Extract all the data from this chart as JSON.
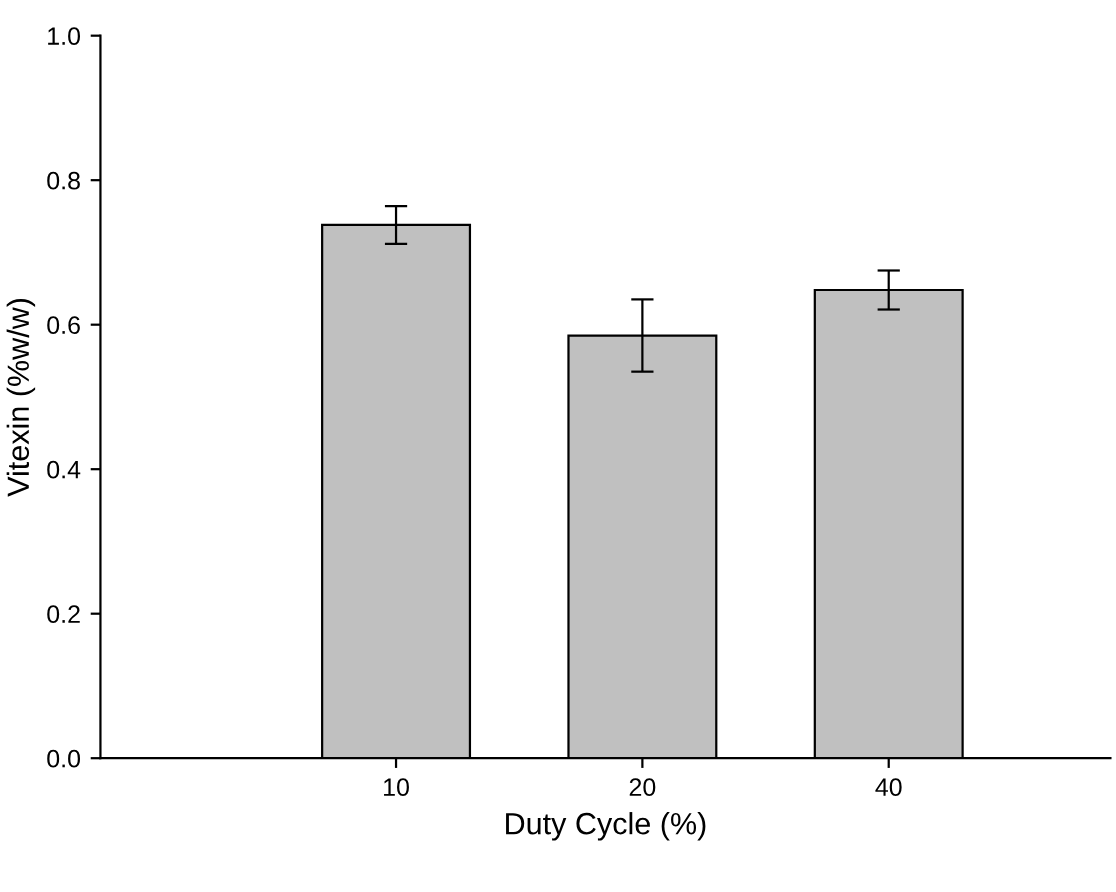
{
  "chart_data": {
    "type": "bar",
    "xlabel": "Duty Cycle (%)",
    "ylabel": "Vitexin (%w/w)",
    "categories": [
      "10",
      "20",
      "40"
    ],
    "values": [
      0.738,
      0.585,
      0.648
    ],
    "errors": [
      0.026,
      0.05,
      0.027
    ],
    "color": "#c0c0c0",
    "ylim": [
      0,
      1.0
    ],
    "yticks": [
      {
        "value": 0,
        "label": "0.0"
      },
      {
        "value": 0.2,
        "label": "0.2"
      },
      {
        "value": 0.4,
        "label": "0.4"
      },
      {
        "value": 0.6,
        "label": "0.6"
      },
      {
        "value": 0.8,
        "label": "0.8"
      },
      {
        "value": 1.0,
        "label": "1.0"
      }
    ],
    "grid": false,
    "legend": false
  }
}
